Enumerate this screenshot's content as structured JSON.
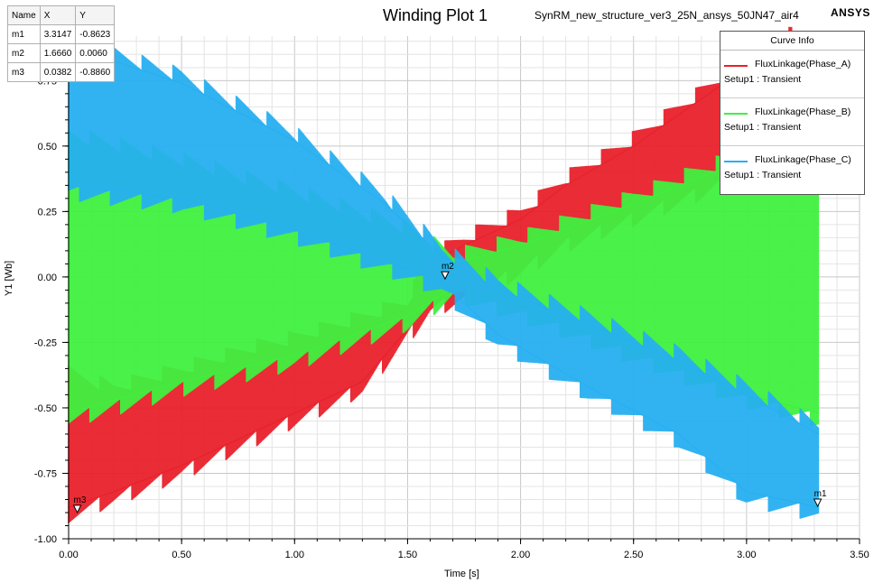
{
  "title": "Winding Plot 1",
  "subtitle": "SynRM_new_structure_ver3_25N_ansys_50JN47_air4",
  "brand": "ANSYS",
  "marker_table": {
    "headers": [
      "Name",
      "X",
      "Y"
    ],
    "rows": [
      {
        "name": "m1",
        "x": "3.3147",
        "y": "-0.8623"
      },
      {
        "name": "m2",
        "x": "1.6660",
        "y": "0.0060"
      },
      {
        "name": "m3",
        "x": "0.0382",
        "y": "-0.8860"
      }
    ]
  },
  "legend": {
    "title": "Curve Info",
    "items": [
      {
        "name": "FluxLinkage(Phase_A)",
        "setup": "Setup1 : Transient",
        "color": "#e8212b"
      },
      {
        "name": "FluxLinkage(Phase_B)",
        "setup": "Setup1 : Transient",
        "color": "#3ff03f"
      },
      {
        "name": "FluxLinkage(Phase_C)",
        "setup": "Setup1 : Transient",
        "color": "#27aff0"
      }
    ]
  },
  "chart_data": {
    "type": "line",
    "title": "Winding Plot 1",
    "xlabel": "Time [s]",
    "ylabel": "Y1 [Wb]",
    "xlim": [
      0,
      3.5
    ],
    "ylim": [
      -1.0,
      0.92
    ],
    "grid": true,
    "legend_position": "top-right",
    "x_ticks": [
      "0.00",
      "0.50",
      "1.00",
      "1.50",
      "2.00",
      "2.50",
      "3.00",
      "3.50"
    ],
    "y_ticks": [
      "-1.00",
      "-0.75",
      "-0.50",
      "-0.25",
      "0.00",
      "0.25",
      "0.50",
      "0.75"
    ],
    "series": [
      {
        "name": "FluxLinkage(Phase_A)",
        "color": "#e8212b",
        "envelope": [
          {
            "x": 0.0,
            "lower": -0.88,
            "upper": -0.4
          },
          {
            "x": 0.2,
            "lower": -0.82,
            "upper": -0.45
          },
          {
            "x": 0.5,
            "lower": -0.72,
            "upper": -0.38
          },
          {
            "x": 0.8,
            "lower": -0.6,
            "upper": -0.3
          },
          {
            "x": 1.0,
            "lower": -0.52,
            "upper": -0.26
          },
          {
            "x": 1.3,
            "lower": -0.4,
            "upper": -0.18
          },
          {
            "x": 1.5,
            "lower": -0.2,
            "upper": -0.12
          },
          {
            "x": 1.6,
            "lower": -0.1,
            "upper": 0.05
          },
          {
            "x": 1.75,
            "lower": -0.05,
            "upper": 0.12
          },
          {
            "x": 2.0,
            "lower": 0.05,
            "upper": 0.22
          },
          {
            "x": 2.2,
            "lower": 0.15,
            "upper": 0.35
          },
          {
            "x": 2.5,
            "lower": 0.25,
            "upper": 0.5
          },
          {
            "x": 2.8,
            "lower": 0.35,
            "upper": 0.68
          },
          {
            "x": 3.1,
            "lower": 0.48,
            "upper": 0.86
          },
          {
            "x": 3.2,
            "lower": 0.52,
            "upper": 0.9
          }
        ]
      },
      {
        "name": "FluxLinkage(Phase_B)",
        "color": "#3ff03f",
        "envelope": [
          {
            "x": 0.0,
            "lower": -0.52,
            "upper": 0.52
          },
          {
            "x": 0.5,
            "lower": -0.4,
            "upper": 0.42
          },
          {
            "x": 1.0,
            "lower": -0.3,
            "upper": 0.3
          },
          {
            "x": 1.5,
            "lower": -0.15,
            "upper": 0.16
          },
          {
            "x": 1.7,
            "lower": -0.04,
            "upper": 0.05
          },
          {
            "x": 2.0,
            "lower": -0.12,
            "upper": 0.12
          },
          {
            "x": 2.5,
            "lower": -0.28,
            "upper": 0.28
          },
          {
            "x": 3.0,
            "lower": -0.45,
            "upper": 0.45
          },
          {
            "x": 3.32,
            "lower": -0.52,
            "upper": 0.5
          }
        ]
      },
      {
        "name": "FluxLinkage(Phase_C)",
        "color": "#27aff0",
        "envelope": [
          {
            "x": 0.0,
            "lower": 0.35,
            "upper": 0.88
          },
          {
            "x": 0.5,
            "lower": 0.3,
            "upper": 0.74
          },
          {
            "x": 1.0,
            "lower": 0.18,
            "upper": 0.52
          },
          {
            "x": 1.4,
            "lower": 0.06,
            "upper": 0.28
          },
          {
            "x": 1.65,
            "lower": -0.02,
            "upper": 0.08
          },
          {
            "x": 1.9,
            "lower": -0.22,
            "upper": -0.05
          },
          {
            "x": 2.3,
            "lower": -0.42,
            "upper": -0.18
          },
          {
            "x": 2.7,
            "lower": -0.6,
            "upper": -0.32
          },
          {
            "x": 3.0,
            "lower": -0.82,
            "upper": -0.45
          },
          {
            "x": 3.32,
            "lower": -0.88,
            "upper": -0.6
          }
        ]
      }
    ],
    "markers": [
      {
        "label": "m1",
        "x": 3.3147,
        "y": -0.8623
      },
      {
        "label": "m2",
        "x": 1.666,
        "y": 0.006
      },
      {
        "label": "m3",
        "x": 0.0382,
        "y": -0.886
      }
    ]
  }
}
